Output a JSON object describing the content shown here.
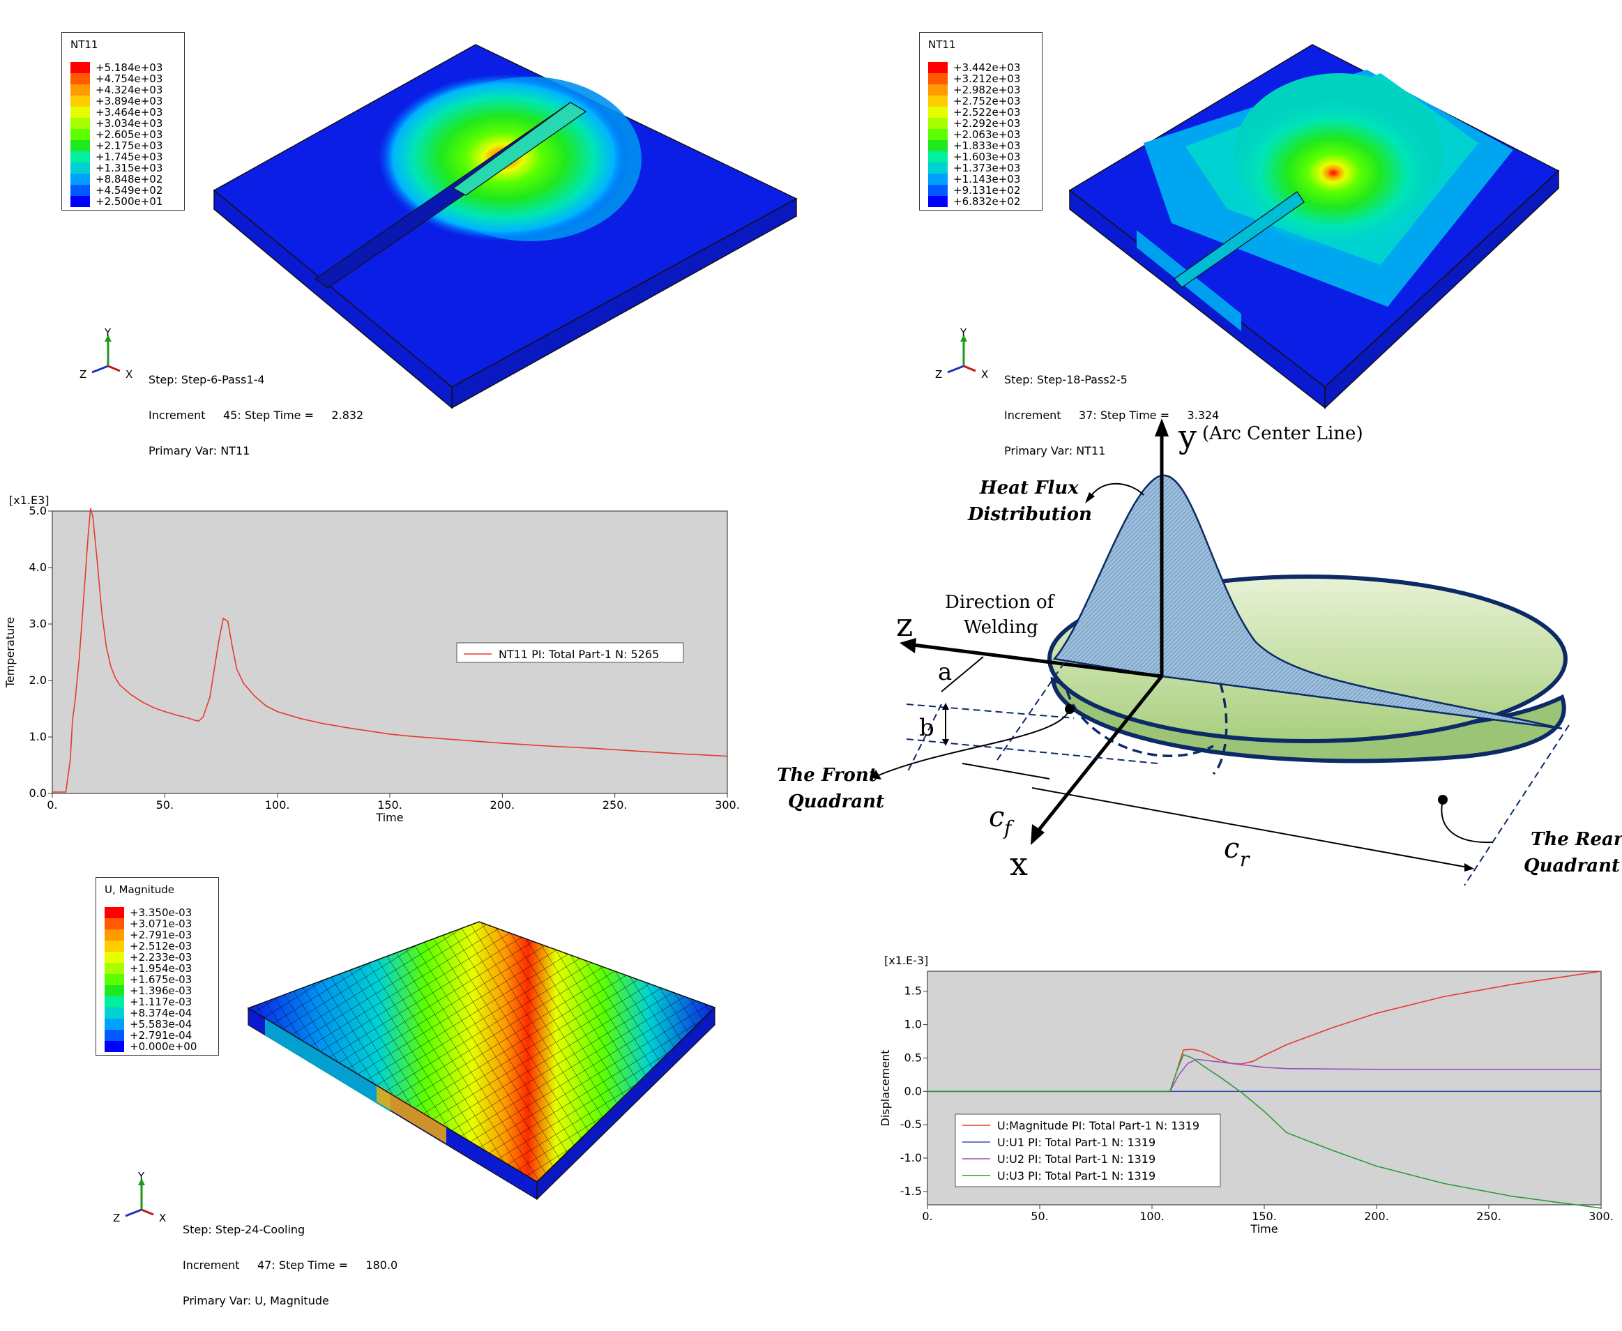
{
  "panels": {
    "temp1": {
      "legend": {
        "title": "NT11",
        "values": [
          "+5.184e+03",
          "+4.754e+03",
          "+4.324e+03",
          "+3.894e+03",
          "+3.464e+03",
          "+3.034e+03",
          "+2.605e+03",
          "+2.175e+03",
          "+1.745e+03",
          "+1.315e+03",
          "+8.848e+02",
          "+4.549e+02",
          "+2.500e+01"
        ],
        "colors": [
          "#ff0000",
          "#ff5a00",
          "#ff9a00",
          "#ffcc00",
          "#e6ff00",
          "#a6ff00",
          "#5cff00",
          "#1ee81e",
          "#00f0a0",
          "#00d2d2",
          "#00a0ff",
          "#005aff",
          "#0000ff"
        ]
      },
      "step": "Step: Step-6-Pass1-4",
      "increment": "Increment     45: Step Time =     2.832",
      "primary": "Primary Var: NT11",
      "triad": {
        "y": "Y",
        "z": "Z",
        "x": "X"
      }
    },
    "temp2": {
      "legend": {
        "title": "NT11",
        "values": [
          "+3.442e+03",
          "+3.212e+03",
          "+2.982e+03",
          "+2.752e+03",
          "+2.522e+03",
          "+2.292e+03",
          "+2.063e+03",
          "+1.833e+03",
          "+1.603e+03",
          "+1.373e+03",
          "+1.143e+03",
          "+9.131e+02",
          "+6.832e+02"
        ],
        "colors": [
          "#ff0000",
          "#ff5a00",
          "#ff9a00",
          "#ffcc00",
          "#e6ff00",
          "#a6ff00",
          "#5cff00",
          "#1ee81e",
          "#00f0a0",
          "#00d2d2",
          "#00a0ff",
          "#005aff",
          "#0000ff"
        ]
      },
      "step": "Step: Step-18-Pass2-5",
      "increment": "Increment     37: Step Time =     3.324",
      "primary": "Primary Var: NT11",
      "triad": {
        "y": "Y",
        "z": "Z",
        "x": "X"
      }
    },
    "disp": {
      "legend": {
        "title": "U, Magnitude",
        "values": [
          "+3.350e-03",
          "+3.071e-03",
          "+2.791e-03",
          "+2.512e-03",
          "+2.233e-03",
          "+1.954e-03",
          "+1.675e-03",
          "+1.396e-03",
          "+1.117e-03",
          "+8.374e-04",
          "+5.583e-04",
          "+2.791e-04",
          "+0.000e+00"
        ],
        "colors": [
          "#ff0000",
          "#ff5a00",
          "#ff9a00",
          "#ffcc00",
          "#e6ff00",
          "#a6ff00",
          "#5cff00",
          "#1ee81e",
          "#00f0a0",
          "#00d2d2",
          "#00a0ff",
          "#005aff",
          "#0000ff"
        ]
      },
      "step": "Step: Step-24-Cooling",
      "increment": "Increment     47: Step Time =     180.0",
      "primary": "Primary Var: U, Magnitude",
      "triad": {
        "y": "Y",
        "z": "Z",
        "x": "X"
      }
    }
  },
  "diagram": {
    "y_label": "y",
    "arc_center": "(Arc Center Line)",
    "heat_flux_1": "Heat Flux",
    "heat_flux_2": "Distribution",
    "direction_1": "Direction of",
    "direction_2": "Welding",
    "z_label": "z",
    "x_label": "x",
    "a_label": "a",
    "b_label": "b",
    "cf_label": "c",
    "cf_sub": "f",
    "cr_label": "c",
    "cr_sub": "r",
    "front_1": "The Front",
    "front_2": "Quadrant",
    "rear_1": "The Rear",
    "rear_2": "Quadrant"
  },
  "chart_data": [
    {
      "type": "line",
      "multiplier": "[x1.E3]",
      "xlabel": "Time",
      "ylabel": "Temperature",
      "xlim": [
        0,
        300
      ],
      "ylim": [
        0,
        5.0
      ],
      "xticks": [
        0,
        50,
        100,
        150,
        200,
        250,
        300
      ],
      "xtick_labels": [
        "0.",
        "50.",
        "100.",
        "150.",
        "200.",
        "250.",
        "300."
      ],
      "yticks": [
        0,
        1,
        2,
        3,
        4,
        5
      ],
      "ytick_labels": [
        "0.0",
        "1.0",
        "2.0",
        "3.0",
        "4.0",
        "5.0"
      ],
      "legend_position": "right",
      "series": [
        {
          "name": "NT11 PI: Total Part-1 N: 5265",
          "color": "#e8392e",
          "x": [
            0,
            6,
            8,
            9,
            10,
            12,
            14,
            16,
            17,
            18,
            20,
            22,
            24,
            26,
            28,
            30,
            35,
            40,
            45,
            50,
            55,
            60,
            63,
            65,
            67,
            70,
            72,
            74,
            76,
            78,
            80,
            82,
            85,
            90,
            95,
            100,
            110,
            120,
            130,
            140,
            150,
            160,
            180,
            200,
            220,
            240,
            260,
            280,
            300
          ],
          "y": [
            0.025,
            0.025,
            0.6,
            1.3,
            1.6,
            2.4,
            3.5,
            4.6,
            5.05,
            4.9,
            4.1,
            3.2,
            2.6,
            2.25,
            2.05,
            1.92,
            1.75,
            1.62,
            1.52,
            1.45,
            1.39,
            1.34,
            1.3,
            1.28,
            1.35,
            1.7,
            2.2,
            2.7,
            3.1,
            3.05,
            2.6,
            2.2,
            1.95,
            1.72,
            1.55,
            1.45,
            1.33,
            1.24,
            1.17,
            1.11,
            1.05,
            1.01,
            0.95,
            0.89,
            0.84,
            0.8,
            0.75,
            0.7,
            0.66
          ]
        }
      ]
    },
    {
      "type": "line",
      "multiplier": "[x1.E-3]",
      "xlabel": "Time",
      "ylabel": "Displacement",
      "xlim": [
        0,
        300
      ],
      "ylim": [
        -1.7,
        1.8
      ],
      "xticks": [
        0,
        50,
        100,
        150,
        200,
        250,
        300
      ],
      "xtick_labels": [
        "0.",
        "50.",
        "100.",
        "150.",
        "200.",
        "250.",
        "300."
      ],
      "yticks": [
        -1.5,
        -1.0,
        -0.5,
        0.0,
        0.5,
        1.0,
        1.5
      ],
      "ytick_labels": [
        "-1.5",
        "-1.0",
        "-0.5",
        "0.0",
        "0.5",
        "1.0",
        "1.5"
      ],
      "legend_position": "bottom-left",
      "series": [
        {
          "name": "U:Magnitude PI: Total Part-1 N: 1319",
          "color": "#e8392e",
          "x": [
            0,
            108,
            111,
            114,
            118,
            122,
            130,
            135,
            140,
            145,
            150,
            160,
            180,
            200,
            230,
            260,
            300
          ],
          "y": [
            0,
            0,
            0.3,
            0.62,
            0.63,
            0.6,
            0.47,
            0.42,
            0.41,
            0.45,
            0.54,
            0.7,
            0.95,
            1.17,
            1.42,
            1.6,
            1.8
          ]
        },
        {
          "name": "U:U1 PI: Total Part-1 N: 1319",
          "color": "#3a4fb0",
          "x": [
            0,
            108,
            300
          ],
          "y": [
            0,
            0,
            0
          ]
        },
        {
          "name": "U:U2 PI: Total Part-1 N: 1319",
          "color": "#9a4fc0",
          "x": [
            0,
            108,
            112,
            116,
            120,
            130,
            140,
            150,
            160,
            200,
            250,
            300
          ],
          "y": [
            0,
            0,
            0.25,
            0.42,
            0.48,
            0.44,
            0.4,
            0.36,
            0.34,
            0.33,
            0.33,
            0.33
          ]
        },
        {
          "name": "U:U3 PI: Total Part-1 N: 1319",
          "color": "#2f9a3a",
          "x": [
            0,
            108,
            111,
            114,
            118,
            122,
            130,
            140,
            150,
            160,
            180,
            200,
            230,
            260,
            300
          ],
          "y": [
            0,
            0,
            0.3,
            0.55,
            0.5,
            0.4,
            0.22,
            -0.02,
            -0.3,
            -0.62,
            -0.88,
            -1.12,
            -1.38,
            -1.57,
            -1.75
          ]
        }
      ]
    }
  ]
}
